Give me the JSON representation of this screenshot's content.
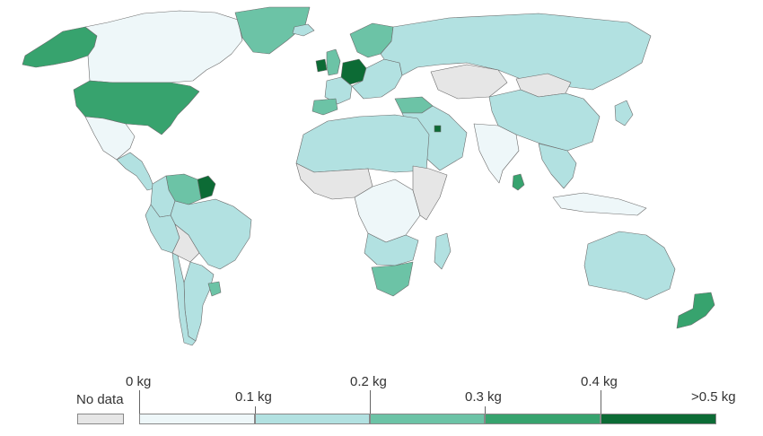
{
  "legend": {
    "no_data_label": "No data",
    "no_data_color": "#e6e6e6",
    "labels": [
      "0 kg",
      "0.1 kg",
      "0.2 kg",
      "0.3 kg",
      "0.4 kg",
      ">0.5 kg"
    ],
    "bin_colors": [
      "#eef7f9",
      "#b2e1e1",
      "#6cc3a6",
      "#37a36e",
      "#0c6b35"
    ]
  },
  "colors": {
    "ocean": "#ffffff",
    "border": "#6b6b6b"
  },
  "regions": [
    {
      "name": "Alaska",
      "bin": 3
    },
    {
      "name": "Canada",
      "bin": 0
    },
    {
      "name": "Greenland",
      "bin": 2
    },
    {
      "name": "United States",
      "bin": 3
    },
    {
      "name": "Mexico",
      "bin": 0
    },
    {
      "name": "Central America",
      "bin": 1
    },
    {
      "name": "Guyana",
      "bin": 4
    },
    {
      "name": "Venezuela",
      "bin": 2
    },
    {
      "name": "Colombia",
      "bin": 1
    },
    {
      "name": "Brazil",
      "bin": 1
    },
    {
      "name": "Peru",
      "bin": 1
    },
    {
      "name": "Bolivia",
      "bin": "no-data"
    },
    {
      "name": "Argentina",
      "bin": 1
    },
    {
      "name": "Chile",
      "bin": 1
    },
    {
      "name": "Uruguay",
      "bin": 2
    },
    {
      "name": "Iceland",
      "bin": 1
    },
    {
      "name": "Ireland",
      "bin": 4
    },
    {
      "name": "United Kingdom",
      "bin": 2
    },
    {
      "name": "Germany",
      "bin": 4
    },
    {
      "name": "France",
      "bin": 1
    },
    {
      "name": "Spain",
      "bin": 2
    },
    {
      "name": "Scandinavia",
      "bin": 2
    },
    {
      "name": "Eastern Europe",
      "bin": 1
    },
    {
      "name": "Turkey",
      "bin": 2
    },
    {
      "name": "Russia",
      "bin": 1
    },
    {
      "name": "Kazakhstan",
      "bin": "no-data"
    },
    {
      "name": "Mongolia",
      "bin": "no-data"
    },
    {
      "name": "China",
      "bin": 1
    },
    {
      "name": "Japan",
      "bin": 1
    },
    {
      "name": "Middle East",
      "bin": 1
    },
    {
      "name": "Kuwait",
      "bin": 4
    },
    {
      "name": "India",
      "bin": 0
    },
    {
      "name": "Sri Lanka",
      "bin": 3
    },
    {
      "name": "Southeast Asia",
      "bin": 1
    },
    {
      "name": "Indonesia",
      "bin": 0
    },
    {
      "name": "North Africa",
      "bin": 1
    },
    {
      "name": "West Africa",
      "bin": "no-data"
    },
    {
      "name": "Central Africa",
      "bin": 0
    },
    {
      "name": "East Africa",
      "bin": "no-data"
    },
    {
      "name": "Southern Africa",
      "bin": 1
    },
    {
      "name": "South Africa",
      "bin": 2
    },
    {
      "name": "Madagascar",
      "bin": 1
    },
    {
      "name": "Australia",
      "bin": 1
    },
    {
      "name": "New Zealand",
      "bin": 3
    }
  ]
}
